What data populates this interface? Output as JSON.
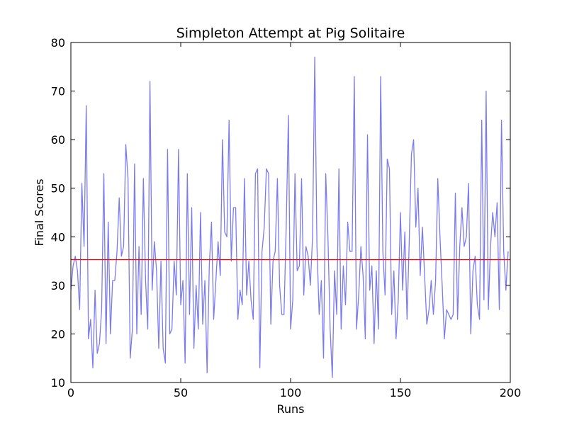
{
  "chart_data": {
    "type": "line",
    "title": "Simpleton Attempt at Pig Solitaire",
    "xlabel": "Runs",
    "ylabel": "Final Scores",
    "xlim": [
      0,
      200
    ],
    "ylim": [
      10,
      80
    ],
    "xticks": [
      0,
      50,
      100,
      150,
      200
    ],
    "yticks": [
      10,
      20,
      30,
      40,
      50,
      60,
      70,
      80
    ],
    "grid": false,
    "series": [
      {
        "name": "scores",
        "color": "#7b7bf0",
        "values": [
          29,
          34,
          36,
          33,
          25,
          51,
          38,
          67,
          19,
          23,
          13,
          29,
          16,
          18,
          25,
          53,
          18,
          43,
          20,
          31,
          31,
          37,
          48,
          36,
          38,
          59,
          52,
          15,
          21,
          55,
          20,
          38,
          24,
          52,
          31,
          21,
          72,
          29,
          39,
          33,
          17,
          35,
          17,
          14,
          58,
          20,
          21,
          35,
          28,
          58,
          26,
          31,
          14,
          53,
          24,
          46,
          17,
          30,
          21,
          45,
          22,
          31,
          12,
          34,
          43,
          23,
          31,
          39,
          32,
          60,
          41,
          40,
          64,
          35,
          46,
          46,
          23,
          29,
          26,
          52,
          28,
          35,
          27,
          23,
          53,
          54,
          13,
          37,
          42,
          54,
          53,
          22,
          35,
          37,
          52,
          30,
          24,
          24,
          42,
          65,
          21,
          27,
          53,
          33,
          34,
          52,
          28,
          38,
          36,
          30,
          40,
          77,
          38,
          24,
          31,
          15,
          53,
          40,
          21,
          11,
          33,
          24,
          54,
          21,
          34,
          26,
          43,
          37,
          37,
          73,
          21,
          28,
          38,
          32,
          19,
          61,
          29,
          34,
          18,
          33,
          21,
          73,
          37,
          28,
          56,
          54,
          24,
          33,
          19,
          27,
          45,
          29,
          41,
          23,
          39,
          57,
          60,
          42,
          50,
          32,
          42,
          32,
          22,
          25,
          31,
          24,
          31,
          52,
          40,
          30,
          19,
          25,
          24,
          23,
          24,
          49,
          23,
          38,
          46,
          38,
          40,
          51,
          20,
          33,
          36,
          26,
          23,
          64,
          27,
          70,
          25,
          38,
          45,
          40,
          47,
          25,
          64,
          37,
          29,
          37
        ],
        "note": "200 runs, indices 0-199"
      },
      {
        "name": "mean",
        "color": "#ff0000",
        "value": 35.3
      }
    ]
  }
}
